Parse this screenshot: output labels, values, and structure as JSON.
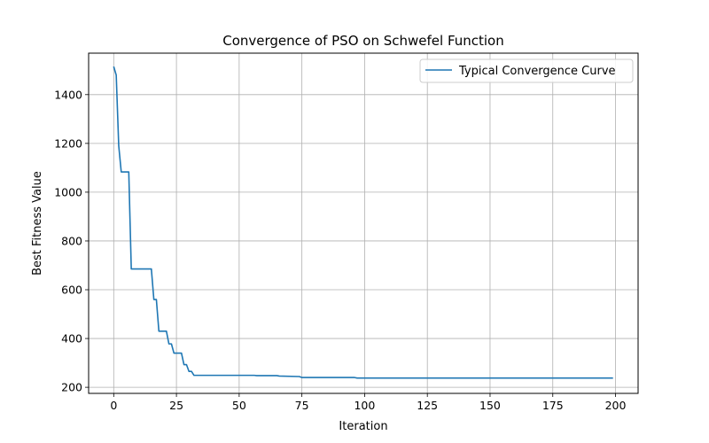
{
  "chart_data": {
    "type": "line",
    "title": "Convergence of PSO on Schwefel Function",
    "xlabel": "Iteration",
    "ylabel": "Best Fitness Value",
    "xlim": [
      -10,
      209
    ],
    "ylim": [
      175,
      1570
    ],
    "xticks": [
      0,
      25,
      50,
      75,
      100,
      125,
      150,
      175,
      200
    ],
    "yticks": [
      200,
      400,
      600,
      800,
      1000,
      1200,
      1400
    ],
    "grid": true,
    "legend_position": "top-right",
    "series": [
      {
        "name": "Typical Convergence Curve",
        "color": "#1f77b4",
        "x": [
          0,
          1,
          2,
          3,
          4,
          5,
          6,
          7,
          8,
          9,
          10,
          11,
          12,
          13,
          14,
          15,
          16,
          17,
          18,
          19,
          20,
          21,
          22,
          23,
          24,
          25,
          26,
          27,
          28,
          29,
          30,
          31,
          32,
          33,
          34,
          35,
          40,
          45,
          50,
          56,
          57,
          65,
          66,
          74,
          75,
          80,
          90,
          96,
          97,
          120,
          150,
          180,
          199
        ],
        "y": [
          1515,
          1480,
          1190,
          1083,
          1083,
          1083,
          1083,
          685,
          685,
          685,
          685,
          685,
          685,
          685,
          685,
          685,
          560,
          560,
          430,
          430,
          430,
          430,
          378,
          378,
          340,
          340,
          340,
          340,
          293,
          293,
          265,
          265,
          249,
          249,
          249,
          249,
          249,
          249,
          249,
          249,
          248,
          248,
          246,
          244,
          240,
          240,
          240,
          240,
          238,
          238,
          238,
          238,
          238
        ]
      }
    ]
  }
}
